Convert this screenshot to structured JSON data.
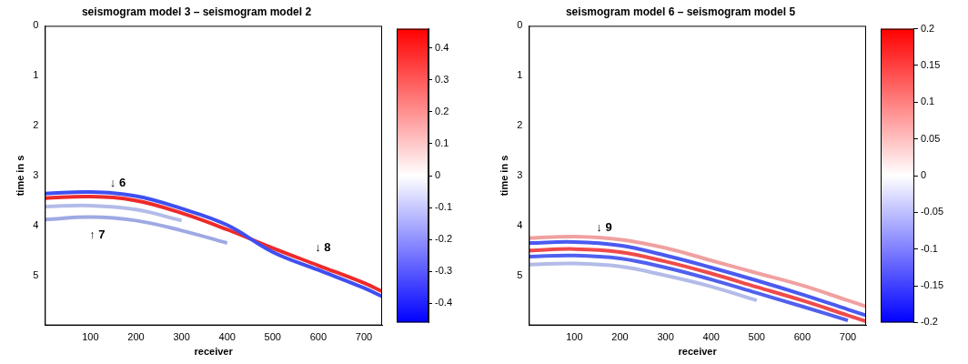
{
  "chart_data": [
    {
      "type": "line",
      "title": "seismogram model 3 – seismogram model 2",
      "x_label": "receiver",
      "y_label": "time in s",
      "grid": false,
      "xlim": [
        0,
        740
      ],
      "xticks": [
        100,
        200,
        300,
        400,
        500,
        600,
        700
      ],
      "ylim": [
        0,
        6
      ],
      "yticks": [
        0,
        1,
        2,
        3,
        4,
        5
      ],
      "x": [
        1,
        100,
        200,
        300,
        400,
        500,
        600,
        700,
        740
      ],
      "series": [
        {
          "color": "#b3bbe8",
          "values": [
            3.62,
            3.6,
            3.68,
            3.9,
            null,
            null,
            null,
            null,
            null
          ]
        },
        {
          "color": "#9ea9e3",
          "values": [
            3.88,
            3.83,
            3.9,
            4.1,
            4.35,
            null,
            null,
            null,
            null
          ]
        },
        {
          "color": "#3f4ff0",
          "values": [
            3.36,
            3.33,
            3.41,
            3.66,
            3.99,
            4.53,
            4.89,
            5.25,
            5.42
          ]
        },
        {
          "color": "#ee2a2a",
          "values": [
            3.45,
            3.42,
            3.5,
            3.75,
            4.08,
            4.45,
            4.8,
            5.15,
            5.32
          ]
        }
      ],
      "annotations": [
        {
          "text": "↓ 6",
          "x": 160,
          "y": 3.15
        },
        {
          "text": "↑ 7",
          "x": 115,
          "y": 4.2
        },
        {
          "text": "↓ 8",
          "x": 610,
          "y": 4.45
        }
      ],
      "colorbar": {
        "range": [
          -0.46,
          0.46
        ],
        "ticks": [
          -0.4,
          -0.3,
          -0.2,
          -0.1,
          0,
          0.1,
          0.2,
          0.3,
          0.4
        ],
        "colors": [
          "#0000ff",
          "#ffffff",
          "#ff0000"
        ]
      }
    },
    {
      "type": "line",
      "title": "seismogram model 6 – seismogram model 5",
      "x_label": "receiver",
      "y_label": "time in s",
      "grid": false,
      "xlim": [
        0,
        740
      ],
      "xticks": [
        100,
        200,
        300,
        400,
        500,
        600,
        700
      ],
      "ylim": [
        0,
        6
      ],
      "yticks": [
        0,
        1,
        2,
        3,
        4,
        5
      ],
      "x": [
        1,
        100,
        200,
        300,
        400,
        500,
        600,
        700,
        740
      ],
      "series": [
        {
          "color": "#f0a0a0",
          "values": [
            4.25,
            4.22,
            4.28,
            4.45,
            4.7,
            4.95,
            5.2,
            5.5,
            5.62
          ]
        },
        {
          "color": "#4a5af0",
          "values": [
            4.35,
            4.33,
            4.4,
            4.6,
            4.84,
            5.1,
            5.38,
            5.68,
            5.8
          ]
        },
        {
          "color": "#f04a4a",
          "values": [
            4.5,
            4.47,
            4.53,
            4.72,
            4.96,
            5.23,
            5.5,
            5.8,
            5.92
          ]
        },
        {
          "color": "#5060ee",
          "values": [
            4.62,
            4.6,
            4.66,
            4.84,
            5.08,
            5.35,
            5.62,
            5.9,
            null
          ]
        },
        {
          "color": "#b3bbe8",
          "values": [
            4.78,
            4.76,
            4.82,
            5.0,
            5.22,
            5.5,
            null,
            null,
            null
          ]
        }
      ],
      "annotations": [
        {
          "text": "↓ 9",
          "x": 165,
          "y": 4.05
        }
      ],
      "colorbar": {
        "range": [
          -0.2,
          0.2
        ],
        "ticks": [
          -0.2,
          -0.15,
          -0.1,
          -0.05,
          0,
          0.05,
          0.1,
          0.15,
          0.2
        ],
        "colors": [
          "#0000ff",
          "#ffffff",
          "#ff0000"
        ]
      }
    }
  ]
}
